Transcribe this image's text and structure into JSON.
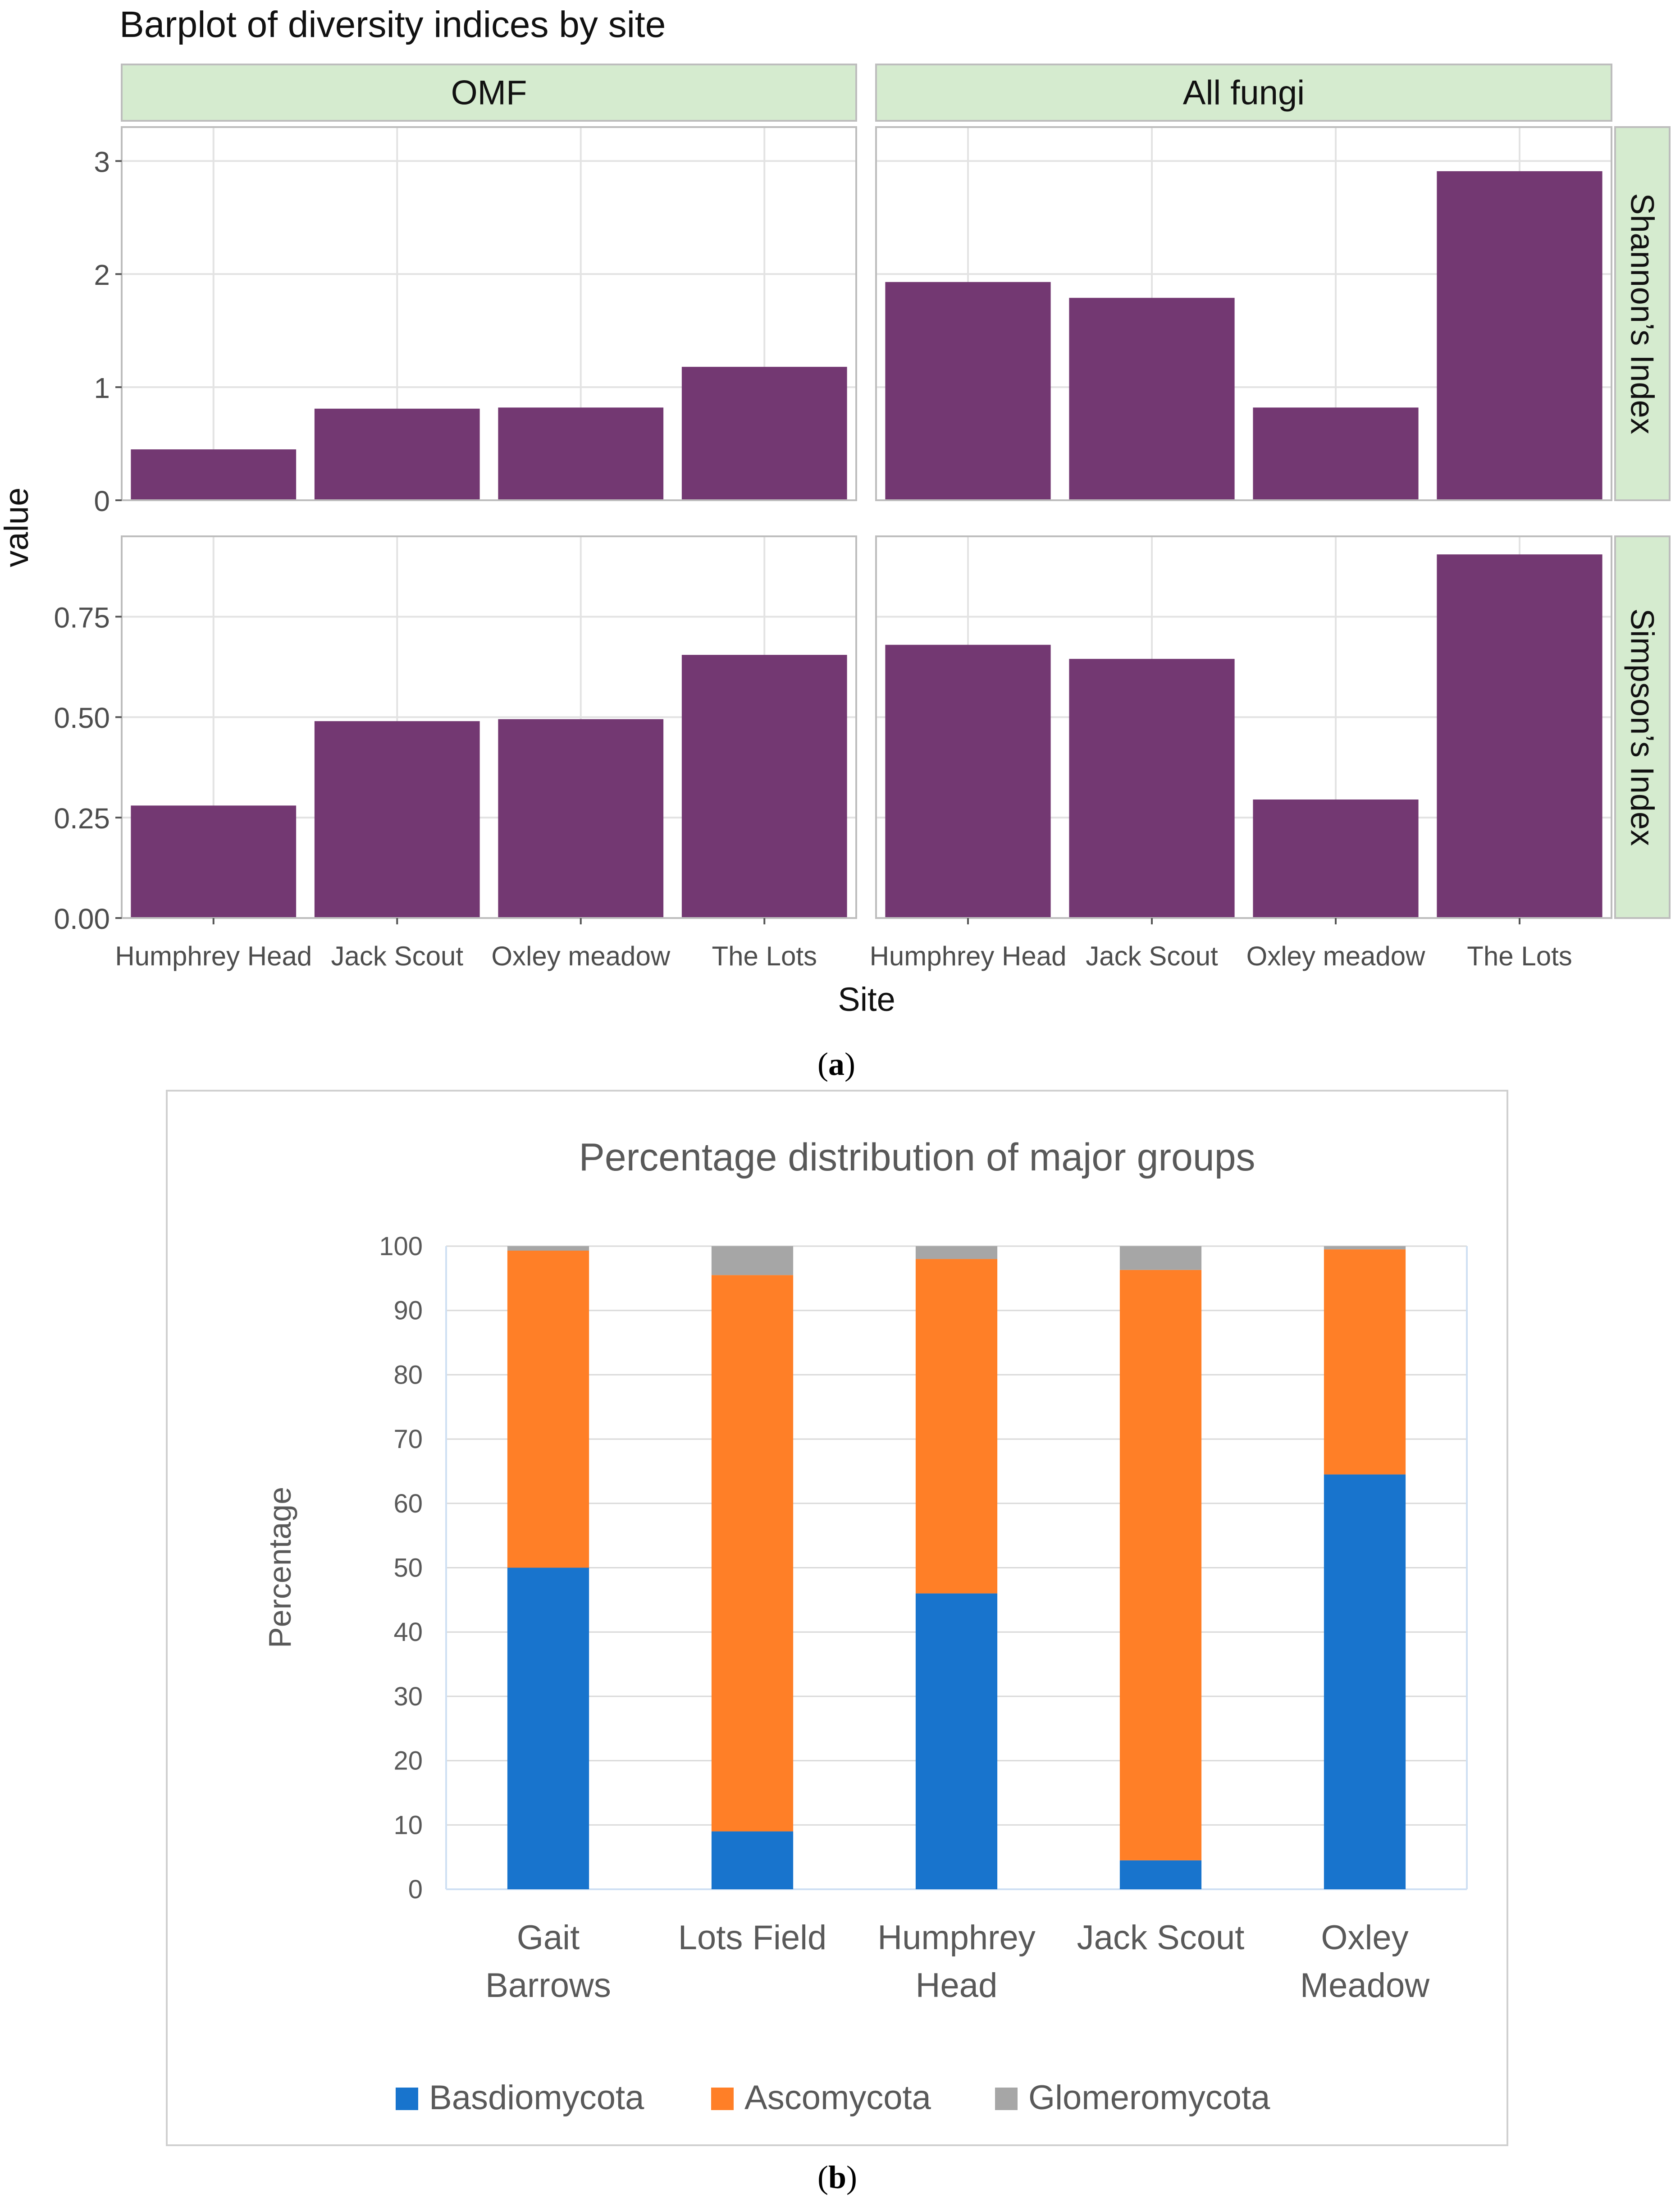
{
  "figure_a": {
    "caption_letter": "a",
    "chart_data": {
      "type": "bar",
      "title": "Barplot of diversity indices by site",
      "xlabel": "Site",
      "ylabel": "value",
      "categories": [
        "Humphrey Head",
        "Jack Scout",
        "Oxley meadow",
        "The Lots"
      ],
      "columns": [
        "OMF",
        "All fungi"
      ],
      "rows": [
        "Shannon’s Index",
        "Simpson’s Index"
      ],
      "bar_color": "#733872",
      "strip_color": "#d5ebcf",
      "panels": [
        {
          "column": "OMF",
          "row": "Shannon’s Index",
          "values": [
            0.45,
            0.81,
            0.82,
            1.18
          ]
        },
        {
          "column": "All fungi",
          "row": "Shannon’s Index",
          "values": [
            1.93,
            1.79,
            0.82,
            2.91
          ]
        },
        {
          "column": "OMF",
          "row": "Simpson’s Index",
          "values": [
            0.28,
            0.49,
            0.495,
            0.655
          ]
        },
        {
          "column": "All fungi",
          "row": "Simpson’s Index",
          "values": [
            0.68,
            0.645,
            0.295,
            0.905
          ]
        }
      ],
      "row_axes": [
        {
          "ylim": [
            0,
            3.3
          ],
          "ticks": [
            0,
            1,
            2,
            3
          ],
          "tick_labels": [
            "0",
            "1",
            "2",
            "3"
          ]
        },
        {
          "ylim": [
            0,
            0.95
          ],
          "ticks": [
            0,
            0.25,
            0.5,
            0.75
          ],
          "tick_labels": [
            "0.00",
            "0.25",
            "0.50",
            "0.75"
          ]
        }
      ],
      "grid": true
    }
  },
  "figure_b": {
    "caption_letter": "b",
    "chart_data": {
      "type": "bar",
      "stacked": true,
      "title": "Percentage distribution of major groups",
      "xlabel": "",
      "ylabel": "Percentage",
      "categories": [
        [
          "Gait",
          "Barrows"
        ],
        [
          "Lots Field"
        ],
        [
          "Humphrey",
          "Head"
        ],
        [
          "Jack Scout"
        ],
        [
          "Oxley",
          "Meadow"
        ]
      ],
      "ylim": [
        0,
        100
      ],
      "ticks": [
        0,
        10,
        20,
        30,
        40,
        50,
        60,
        70,
        80,
        90,
        100
      ],
      "series": [
        {
          "name": "Basdiomycota",
          "color": "#1874cd",
          "values": [
            50,
            9,
            46,
            4.5,
            64.5
          ]
        },
        {
          "name": "Ascomycota",
          "color": "#ff7f27",
          "values": [
            49.3,
            86.5,
            52,
            91.8,
            35
          ]
        },
        {
          "name": "Glomeromycota",
          "color": "#a6a6a6",
          "values": [
            0.7,
            4.5,
            2,
            3.7,
            0.5
          ]
        }
      ],
      "legend": "bottom",
      "grid": true
    }
  }
}
